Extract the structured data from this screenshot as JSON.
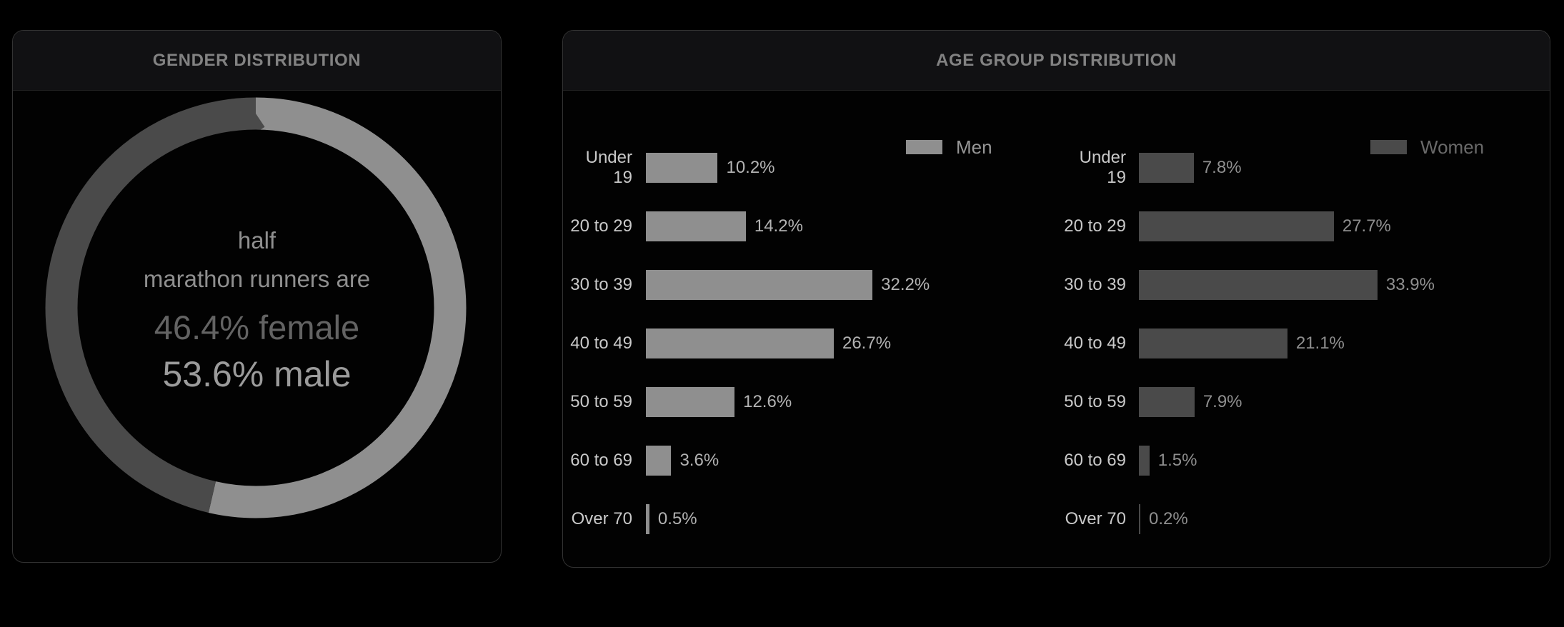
{
  "gender_panel": {
    "title": "GENDER DISTRIBUTION",
    "center_text": {
      "line1": "half",
      "line2": "marathon runners are",
      "female_line": "46.4% female",
      "male_line": "53.6% male"
    }
  },
  "age_panel": {
    "title": "AGE GROUP DISTRIBUTION",
    "legend": {
      "men_label": "Men",
      "women_label": "Women"
    },
    "men_rows": [
      {
        "label": "Under 19",
        "value": 10.2,
        "value_label": "10.2%"
      },
      {
        "label": "20 to 29",
        "value": 14.2,
        "value_label": "14.2%"
      },
      {
        "label": "30 to 39",
        "value": 32.2,
        "value_label": "32.2%"
      },
      {
        "label": "40 to 49",
        "value": 26.7,
        "value_label": "26.7%"
      },
      {
        "label": "50 to 59",
        "value": 12.6,
        "value_label": "12.6%"
      },
      {
        "label": "60 to 69",
        "value": 3.6,
        "value_label": "3.6%"
      },
      {
        "label": "Over 70",
        "value": 0.5,
        "value_label": "0.5%"
      }
    ],
    "women_rows": [
      {
        "label": "Under 19",
        "value": 7.8,
        "value_label": "7.8%"
      },
      {
        "label": "20 to 29",
        "value": 27.7,
        "value_label": "27.7%"
      },
      {
        "label": "30 to 39",
        "value": 33.9,
        "value_label": "33.9%"
      },
      {
        "label": "40 to 49",
        "value": 21.1,
        "value_label": "21.1%"
      },
      {
        "label": "50 to 59",
        "value": 7.9,
        "value_label": "7.9%"
      },
      {
        "label": "60 to 69",
        "value": 1.5,
        "value_label": "1.5%"
      },
      {
        "label": "Over 70",
        "value": 0.2,
        "value_label": "0.2%"
      }
    ]
  },
  "colors": {
    "men": "#8f8f8f",
    "women": "#4a4a4a",
    "background": "#000000",
    "card_border": "#333333",
    "card_header_bg": "#111113"
  },
  "chart_data": [
    {
      "type": "pie",
      "title": "GENDER DISTRIBUTION",
      "donut": true,
      "labels": [
        "male",
        "female"
      ],
      "values": [
        53.6,
        46.4
      ],
      "colors": [
        "#8f8f8f",
        "#4a4a4a"
      ],
      "start_angle": "12 o'clock, male clockwise",
      "center_annotation": "half marathon runners are 46.4% female 53.6% male"
    },
    {
      "type": "bar",
      "title": "AGE GROUP DISTRIBUTION",
      "orientation": "horizontal",
      "categories": [
        "Under 19",
        "20 to 29",
        "30 to 39",
        "40 to 49",
        "50 to 59",
        "60 to 69",
        "Over 70"
      ],
      "series": [
        {
          "name": "Men",
          "values": [
            10.2,
            14.2,
            32.2,
            26.7,
            12.6,
            3.6,
            0.5
          ]
        },
        {
          "name": "Women",
          "values": [
            7.8,
            27.7,
            33.9,
            21.1,
            7.9,
            1.5,
            0.2
          ]
        }
      ],
      "value_suffix": "%",
      "xlim": [
        0,
        35
      ],
      "grid": false,
      "legend_position": "top",
      "data_labels": true
    }
  ]
}
